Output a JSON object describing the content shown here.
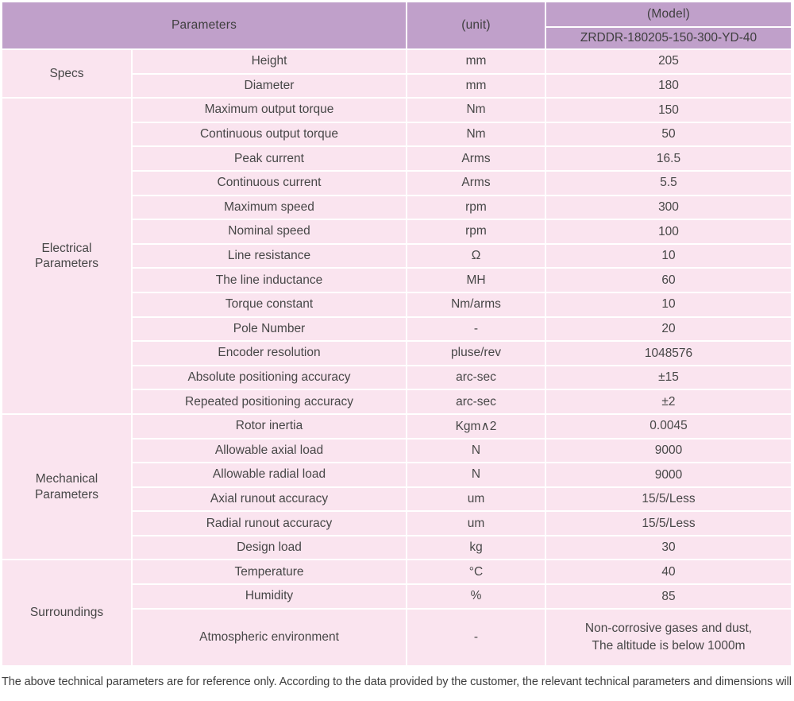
{
  "colors": {
    "header_bg": "#c0a0ca",
    "row_bg": "#fae4ef",
    "text": "#474747"
  },
  "table": {
    "header": {
      "parameters": "Parameters",
      "unit": "(unit)",
      "model": "(Model)",
      "model_number": "ZRDDR-180205-150-300-YD-40"
    },
    "sections": [
      {
        "name": "Specs",
        "rows": [
          {
            "param": "Height",
            "unit": "mm",
            "value": "205"
          },
          {
            "param": "Diameter",
            "unit": "mm",
            "value": "180"
          }
        ]
      },
      {
        "name": "Electrical Parameters",
        "rows": [
          {
            "param": "Maximum output torque",
            "unit": "Nm",
            "value": "150"
          },
          {
            "param": "Continuous output torque",
            "unit": "Nm",
            "value": "50"
          },
          {
            "param": "Peak current",
            "unit": "Arms",
            "value": "16.5"
          },
          {
            "param": "Continuous current",
            "unit": "Arms",
            "value": "5.5"
          },
          {
            "param": "Maximum speed",
            "unit": "rpm",
            "value": "300"
          },
          {
            "param": "Nominal speed",
            "unit": "rpm",
            "value": "100"
          },
          {
            "param": "Line resistance",
            "unit": "Ω",
            "value": "10"
          },
          {
            "param": "The line inductance",
            "unit": "MH",
            "value": "60"
          },
          {
            "param": "Torque constant",
            "unit": "Nm/arms",
            "value": "10"
          },
          {
            "param": "Pole Number",
            "unit": "-",
            "value": "20"
          },
          {
            "param": "Encoder resolution",
            "unit": "pluse/rev",
            "value": "1048576"
          },
          {
            "param": "Absolute positioning accuracy",
            "unit": "arc-sec",
            "value": "±15"
          },
          {
            "param": "Repeated positioning accuracy",
            "unit": "arc-sec",
            "value": "±2"
          }
        ]
      },
      {
        "name": "Mechanical Parameters",
        "rows": [
          {
            "param": "Rotor inertia",
            "unit": "Kgm∧2",
            "value": "0.0045"
          },
          {
            "param": "Allowable axial load",
            "unit": "N",
            "value": "9000"
          },
          {
            "param": "Allowable radial load",
            "unit": "N",
            "value": "9000"
          },
          {
            "param": "Axial runout accuracy",
            "unit": "um",
            "value": "15/5/Less"
          },
          {
            "param": "Radial runout accuracy",
            "unit": "um",
            "value": "15/5/Less"
          },
          {
            "param": "Design load",
            "unit": "kg",
            "value": "30"
          }
        ]
      },
      {
        "name": "Surroundings",
        "rows": [
          {
            "param": "Temperature",
            "unit": "°C",
            "value": "40"
          },
          {
            "param": "Humidity",
            "unit": "%",
            "value": "85"
          },
          {
            "param": "Atmospheric environment",
            "unit": "-",
            "value": "Non-corrosive gases and dust,\nThe altitude is below 1000m",
            "tall": true
          }
        ]
      }
    ]
  },
  "footer": {
    "note": "The above technical parameters are for reference only. According to the data provided by the customer, the relevant technical parameters and dimensions will be issued."
  }
}
